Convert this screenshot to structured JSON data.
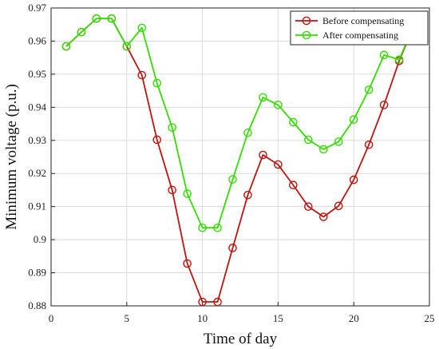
{
  "chart_data": {
    "type": "line",
    "title": "",
    "xlabel": "Time of day",
    "ylabel": "Minimum voltage (p.u.)",
    "xlim": [
      0,
      25
    ],
    "ylim": [
      0.88,
      0.97
    ],
    "xticks": [
      0,
      5,
      10,
      15,
      20,
      25
    ],
    "xtick_labels": [
      "0",
      "5",
      "10",
      "15",
      "20",
      "25"
    ],
    "yticks": [
      0.88,
      0.89,
      0.9,
      0.91,
      0.92,
      0.93,
      0.94,
      0.95,
      0.96,
      0.97
    ],
    "ytick_labels": [
      "0.88",
      "0.89",
      "0.9",
      "0.91",
      "0.92",
      "0.93",
      "0.94",
      "0.95",
      "0.96",
      "0.97"
    ],
    "grid": true,
    "legend_position": "top-right",
    "series": [
      {
        "name": "Before compensating",
        "color": "#c0140c",
        "marker": "circle",
        "x": [
          1,
          2,
          3,
          4,
          5,
          6,
          7,
          8,
          9,
          10,
          11,
          12,
          13,
          14,
          15,
          16,
          17,
          18,
          19,
          20,
          21,
          22,
          23,
          24
        ],
        "values": [
          0.9584,
          0.9627,
          0.9668,
          0.9668,
          0.9584,
          0.9497,
          0.9302,
          0.915,
          0.8928,
          0.8812,
          0.8812,
          0.8975,
          0.9135,
          0.9256,
          0.9227,
          0.9165,
          0.91,
          0.9069,
          0.9102,
          0.9181,
          0.9287,
          0.9407,
          0.954,
          0.965
        ]
      },
      {
        "name": "After compensating",
        "color": "#33dd00",
        "marker": "circle",
        "x": [
          1,
          2,
          3,
          4,
          5,
          6,
          7,
          8,
          9,
          10,
          11,
          12,
          13,
          14,
          15,
          16,
          17,
          18,
          19,
          20,
          21,
          22,
          23,
          24
        ],
        "values": [
          0.9584,
          0.9627,
          0.9668,
          0.9668,
          0.9584,
          0.964,
          0.9473,
          0.9339,
          0.9139,
          0.9036,
          0.9036,
          0.9182,
          0.9323,
          0.943,
          0.9407,
          0.9355,
          0.9302,
          0.9273,
          0.9296,
          0.9363,
          0.9453,
          0.9558,
          0.9544,
          0.965
        ]
      }
    ]
  }
}
